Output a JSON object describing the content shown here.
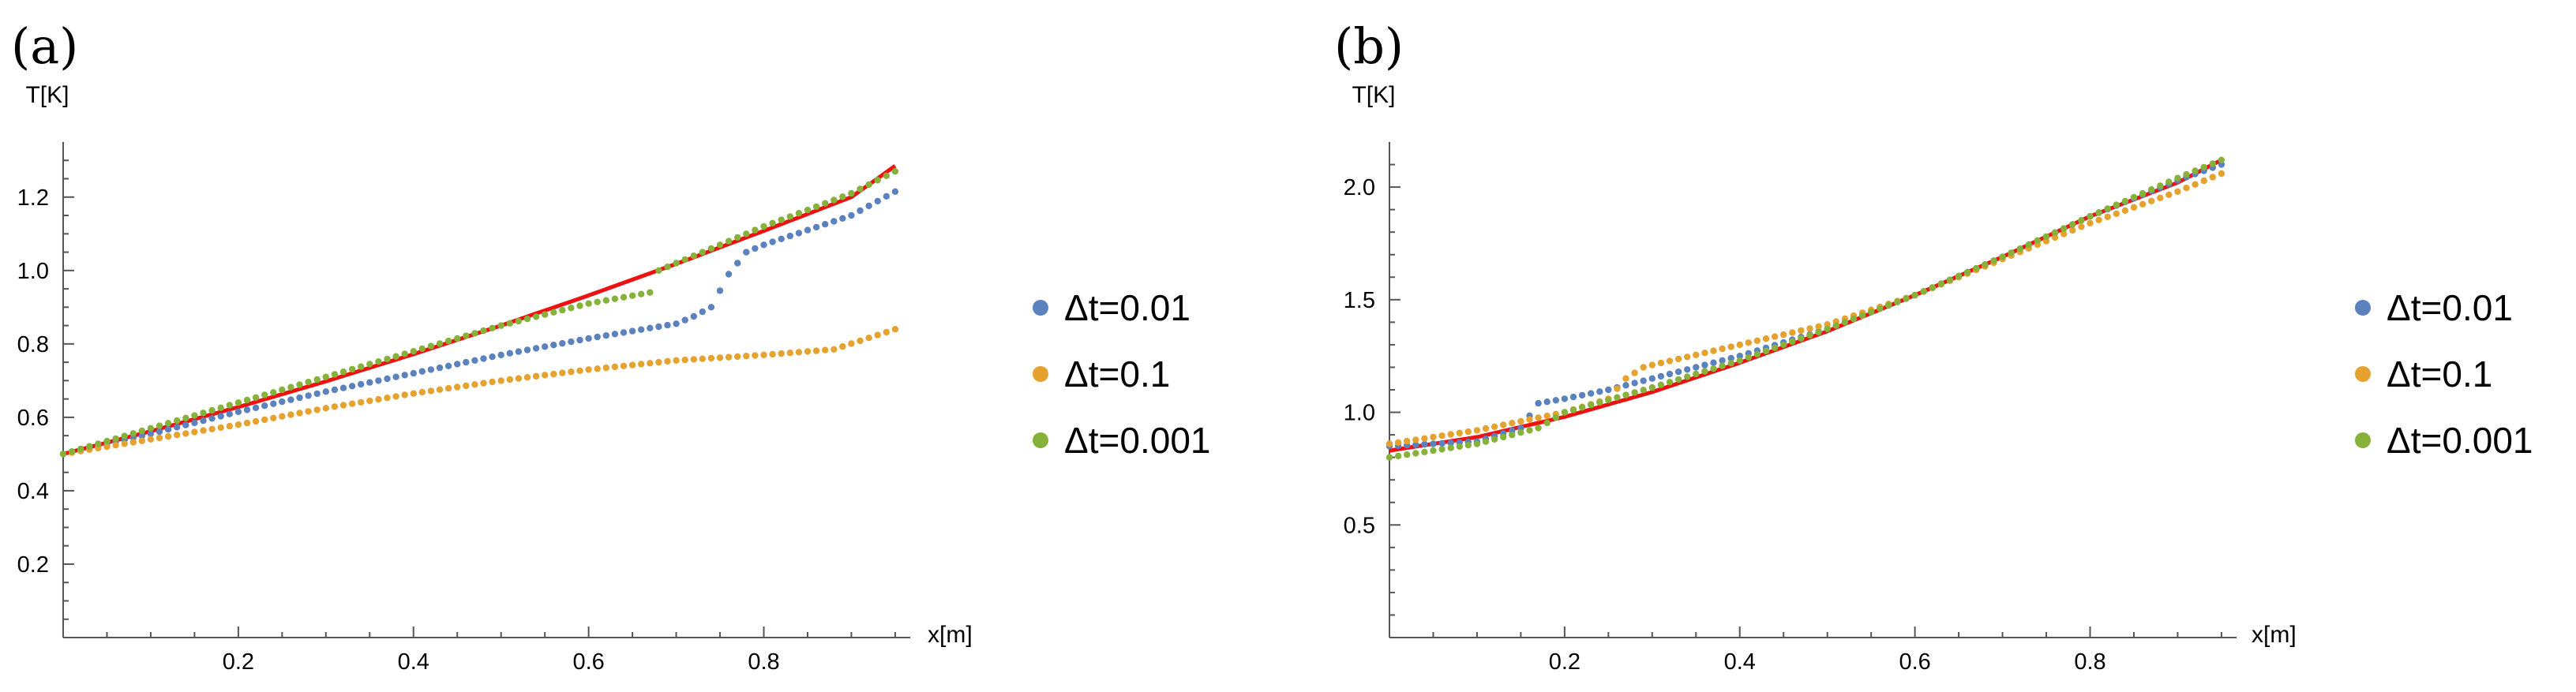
{
  "figure": {
    "colors": {
      "dt_0_01": "#5b82bf",
      "dt_0_1": "#e6a22f",
      "dt_0_001": "#86b23a",
      "analytic": "#ee1111"
    }
  },
  "chart_data": [
    {
      "panel": "(a)",
      "type": "scatter",
      "xlabel": "x[m]",
      "ylabel": "T[K]",
      "xlim": [
        0,
        0.96
      ],
      "ylim": [
        0,
        1.35
      ],
      "xticks": [
        0.2,
        0.4,
        0.6,
        0.8
      ],
      "xtick_labels": [
        "0.2",
        "0.4",
        "0.6",
        "0.8"
      ],
      "yticks": [
        0.2,
        0.4,
        0.6,
        0.8,
        1.0,
        1.2
      ],
      "ytick_labels": [
        "0.2",
        "0.4",
        "0.6",
        "0.8",
        "1.0",
        "1.2"
      ],
      "legend": {
        "position": "right",
        "entries": [
          "Δt=0.01",
          "Δt=0.1",
          "Δt=0.001"
        ]
      },
      "analytic_curve": {
        "x": [
          0.0,
          0.1,
          0.2,
          0.3,
          0.4,
          0.5,
          0.6,
          0.7,
          0.8,
          0.9,
          0.95
        ],
        "y": [
          0.5,
          0.562,
          0.628,
          0.698,
          0.772,
          0.85,
          0.932,
          1.018,
          1.108,
          1.2,
          1.285
        ]
      },
      "series": [
        {
          "name": "Δt=0.01",
          "x": [
            0.0,
            0.1,
            0.2,
            0.3,
            0.4,
            0.5,
            0.6,
            0.7,
            0.72,
            0.74,
            0.76,
            0.78,
            0.8,
            0.9,
            0.95
          ],
          "y": [
            0.5,
            0.555,
            0.615,
            0.67,
            0.72,
            0.77,
            0.815,
            0.855,
            0.875,
            0.9,
            0.99,
            1.05,
            1.07,
            1.15,
            1.215
          ]
        },
        {
          "name": "Δt=0.1",
          "x": [
            0.0,
            0.1,
            0.2,
            0.3,
            0.4,
            0.5,
            0.6,
            0.7,
            0.8,
            0.88,
            0.95
          ],
          "y": [
            0.5,
            0.54,
            0.58,
            0.625,
            0.665,
            0.7,
            0.73,
            0.755,
            0.77,
            0.785,
            0.84
          ]
        },
        {
          "name": "Δt=0.001",
          "x": [
            0.0,
            0.1,
            0.2,
            0.3,
            0.4,
            0.5,
            0.6,
            0.67,
            0.68,
            0.7,
            0.8,
            0.9,
            0.95
          ],
          "y": [
            0.5,
            0.57,
            0.64,
            0.71,
            0.78,
            0.85,
            0.91,
            0.94,
            1.0,
            1.02,
            1.12,
            1.21,
            1.27
          ]
        }
      ]
    },
    {
      "panel": "(b)",
      "type": "scatter",
      "xlabel": "x[m]",
      "ylabel": "T[K]",
      "xlim": [
        0,
        0.96
      ],
      "ylim": [
        0,
        2.2
      ],
      "xticks": [
        0.2,
        0.4,
        0.6,
        0.8
      ],
      "xtick_labels": [
        "0.2",
        "0.4",
        "0.6",
        "0.8"
      ],
      "yticks": [
        0.5,
        1.0,
        1.5,
        2.0
      ],
      "ytick_labels": [
        "0.5",
        "1.0",
        "1.5",
        "2.0"
      ],
      "legend": {
        "position": "right",
        "entries": [
          "Δt=0.01",
          "Δt=0.1",
          "Δt=0.001"
        ]
      },
      "analytic_curve": {
        "x": [
          0.0,
          0.1,
          0.2,
          0.3,
          0.4,
          0.5,
          0.6,
          0.7,
          0.8,
          0.9,
          0.95
        ],
        "y": [
          0.83,
          0.89,
          0.98,
          1.09,
          1.22,
          1.36,
          1.52,
          1.69,
          1.87,
          2.02,
          2.12
        ]
      },
      "series": [
        {
          "name": "Δt=0.01",
          "x": [
            0.0,
            0.1,
            0.15,
            0.17,
            0.2,
            0.25,
            0.3,
            0.4,
            0.5,
            0.6,
            0.7,
            0.8,
            0.9,
            0.95
          ],
          "y": [
            0.85,
            0.87,
            0.93,
            1.04,
            1.06,
            1.1,
            1.15,
            1.25,
            1.37,
            1.52,
            1.69,
            1.87,
            2.03,
            2.1
          ]
        },
        {
          "name": "Δt=0.1",
          "x": [
            0.0,
            0.1,
            0.2,
            0.25,
            0.27,
            0.29,
            0.3,
            0.4,
            0.5,
            0.6,
            0.7,
            0.8,
            0.9,
            0.95
          ],
          "y": [
            0.86,
            0.92,
            1.0,
            1.06,
            1.15,
            1.2,
            1.21,
            1.3,
            1.39,
            1.52,
            1.68,
            1.84,
            1.98,
            2.06
          ]
        },
        {
          "name": "Δt=0.001",
          "x": [
            0.0,
            0.1,
            0.17,
            0.2,
            0.3,
            0.4,
            0.5,
            0.6,
            0.7,
            0.8,
            0.9,
            0.95
          ],
          "y": [
            0.8,
            0.86,
            0.93,
            1.0,
            1.11,
            1.23,
            1.37,
            1.52,
            1.69,
            1.87,
            2.04,
            2.12
          ]
        }
      ]
    }
  ]
}
